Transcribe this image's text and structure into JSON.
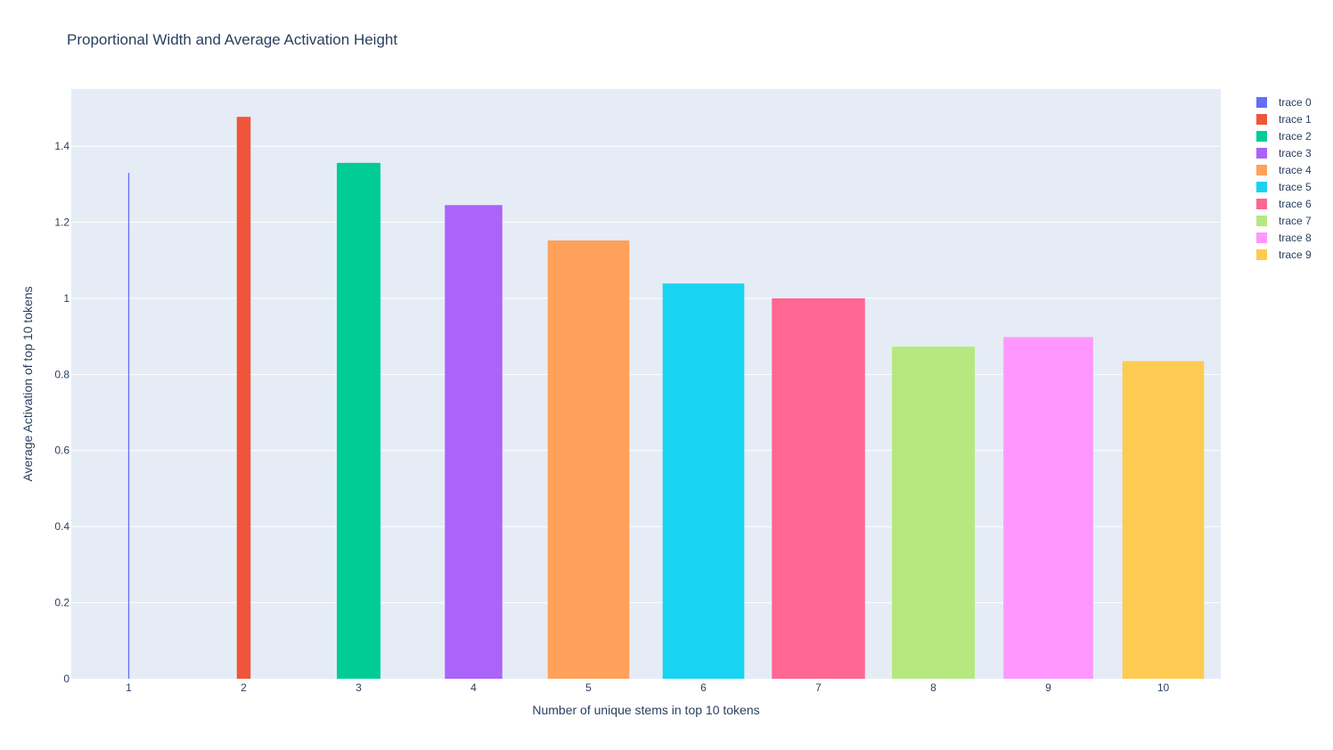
{
  "chart_data": {
    "type": "bar",
    "title": "Proportional Width and Average Activation Height",
    "xlabel": "Number of unique stems in top 10 tokens",
    "ylabel": "Average Activation of top 10 tokens",
    "ylim": [
      0,
      1.55
    ],
    "grid": true,
    "legend_position": "top-right",
    "y_ticks": [
      "0",
      "0.2",
      "0.4",
      "0.6",
      "0.8",
      "1",
      "1.2",
      "1.4"
    ],
    "x_ticks": [
      "1",
      "2",
      "3",
      "4",
      "5",
      "6",
      "7",
      "8",
      "9",
      "10"
    ],
    "series": [
      {
        "name": "trace 0",
        "x": 1,
        "value": 1.33,
        "width": 0.01,
        "color": "#636efa"
      },
      {
        "name": "trace 1",
        "x": 2,
        "value": 1.477,
        "width": 0.12,
        "color": "#EF553B"
      },
      {
        "name": "trace 2",
        "x": 3,
        "value": 1.356,
        "width": 0.38,
        "color": "#00cc96"
      },
      {
        "name": "trace 3",
        "x": 4,
        "value": 1.245,
        "width": 0.5,
        "color": "#ab63fa"
      },
      {
        "name": "trace 4",
        "x": 5,
        "value": 1.152,
        "width": 0.71,
        "color": "#FFA15A"
      },
      {
        "name": "trace 5",
        "x": 6,
        "value": 1.039,
        "width": 0.71,
        "color": "#19d3f3"
      },
      {
        "name": "trace 6",
        "x": 7,
        "value": 1.0,
        "width": 0.81,
        "color": "#FF6692"
      },
      {
        "name": "trace 7",
        "x": 8,
        "value": 0.873,
        "width": 0.72,
        "color": "#B6E880"
      },
      {
        "name": "trace 8",
        "x": 9,
        "value": 0.898,
        "width": 0.78,
        "color": "#FF97FF"
      },
      {
        "name": "trace 9",
        "x": 10,
        "value": 0.835,
        "width": 0.71,
        "color": "#FECB52"
      }
    ]
  }
}
